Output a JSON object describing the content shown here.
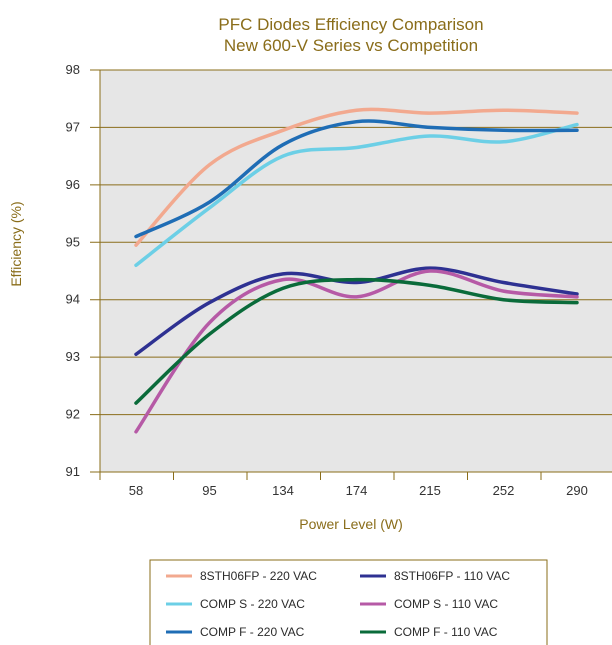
{
  "chart_data": {
    "type": "line",
    "title": "PFC Diodes Efficiency Comparison",
    "subtitle": "New 600-V Series vs Competition",
    "xlabel": "Power Level (W)",
    "ylabel": "Efficiency (%)",
    "categories": [
      "58",
      "95",
      "134",
      "174",
      "215",
      "252",
      "290"
    ],
    "yticks": [
      91,
      92,
      93,
      94,
      95,
      96,
      97,
      98
    ],
    "ylim": [
      91,
      98
    ],
    "grid": true,
    "legend_position": "bottom",
    "series": [
      {
        "name": "8STH06FP - 220 VAC",
        "color": "#f2a98f",
        "values": [
          94.95,
          96.35,
          96.95,
          97.3,
          97.25,
          97.3,
          97.25
        ]
      },
      {
        "name": "8STH06FP - 110 VAC",
        "color": "#2e3192",
        "values": [
          93.05,
          93.95,
          94.45,
          94.3,
          94.55,
          94.3,
          94.1
        ]
      },
      {
        "name": "COMP S - 220 VAC",
        "color": "#6ccfe6",
        "values": [
          94.6,
          95.6,
          96.5,
          96.65,
          96.85,
          96.75,
          97.05
        ]
      },
      {
        "name": "COMP S - 110 VAC",
        "color": "#b65aa6",
        "values": [
          91.7,
          93.6,
          94.35,
          94.05,
          94.5,
          94.15,
          94.05
        ]
      },
      {
        "name": "COMP F - 220 VAC",
        "color": "#1f6db5",
        "values": [
          95.1,
          95.7,
          96.7,
          97.1,
          97.0,
          96.95,
          96.95
        ]
      },
      {
        "name": "COMP F - 110 VAC",
        "color": "#0a6b3a",
        "values": [
          92.2,
          93.4,
          94.2,
          94.35,
          94.25,
          94.0,
          93.95
        ]
      }
    ],
    "colors": {
      "plot_background": "#e6e6e6",
      "gridline": "#8a6d1a",
      "title": "#8a6d1a",
      "legend_border": "#8a6d1a"
    }
  }
}
